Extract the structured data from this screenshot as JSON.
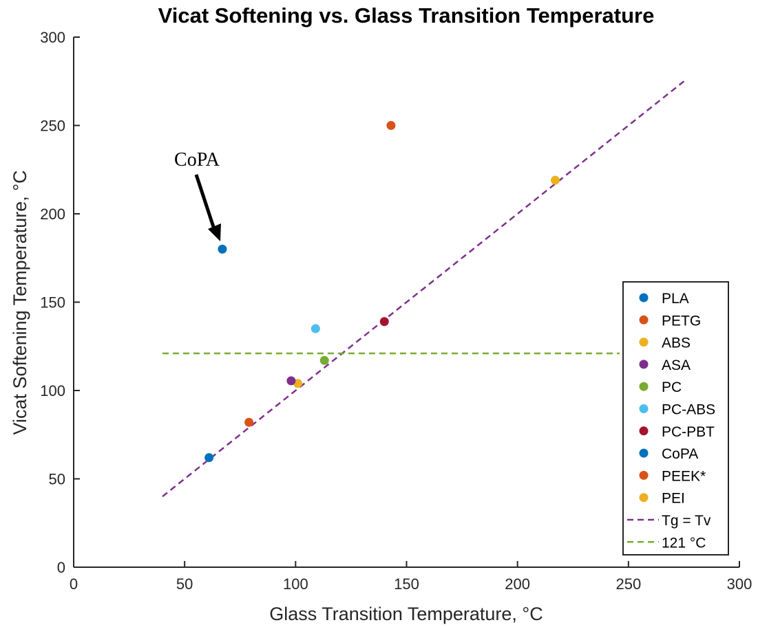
{
  "chart_data": {
    "type": "scatter",
    "title": "Vicat Softening vs. Glass Transition Temperature",
    "xlabel": "Glass Transition Temperature, °C",
    "ylabel": "Vicat Softening Temperature, °C",
    "xlim": [
      0,
      300
    ],
    "ylim": [
      0,
      300
    ],
    "xticks": [
      "0",
      "50",
      "100",
      "150",
      "200",
      "250",
      "300"
    ],
    "yticks": [
      "0",
      "50",
      "100",
      "150",
      "200",
      "250",
      "300"
    ],
    "grid": false,
    "legend_position": "lower-right",
    "series": [
      {
        "name": "PLA",
        "color": "#0072BD",
        "marker": "dot",
        "points": [
          [
            61,
            62
          ]
        ]
      },
      {
        "name": "PETG",
        "color": "#D95319",
        "marker": "dot",
        "points": [
          [
            79,
            82
          ]
        ]
      },
      {
        "name": "ABS",
        "color": "#EDB120",
        "marker": "dot",
        "points": [
          [
            101,
            104
          ]
        ]
      },
      {
        "name": "ASA",
        "color": "#7E2F8E",
        "marker": "dot",
        "points": [
          [
            98,
            105.5
          ]
        ]
      },
      {
        "name": "PC",
        "color": "#77AC30",
        "marker": "dot",
        "points": [
          [
            113,
            117
          ]
        ]
      },
      {
        "name": "PC-ABS",
        "color": "#4DBEEE",
        "marker": "dot",
        "points": [
          [
            109,
            135
          ]
        ]
      },
      {
        "name": "PC-PBT",
        "color": "#A2142F",
        "marker": "dot",
        "points": [
          [
            140,
            139
          ]
        ]
      },
      {
        "name": "CoPA",
        "color": "#0072BD",
        "marker": "dot",
        "points": [
          [
            67,
            180
          ]
        ]
      },
      {
        "name": "PEEK*",
        "color": "#D95319",
        "marker": "dot",
        "points": [
          [
            143,
            250
          ]
        ]
      },
      {
        "name": "PEI",
        "color": "#EDB120",
        "marker": "dot",
        "points": [
          [
            217,
            219
          ]
        ]
      },
      {
        "name": "Tg = Tv",
        "color": "#7E2F8E",
        "marker": "dashed-line",
        "points": [
          [
            40,
            40
          ],
          [
            275,
            275
          ]
        ]
      },
      {
        "name": "121 °C",
        "color": "#77AC30",
        "marker": "dashed-line",
        "points": [
          [
            40,
            121
          ],
          [
            246,
            121
          ]
        ]
      }
    ],
    "annotations": [
      {
        "text": "CoPA",
        "arrow_to": [
          67,
          180
        ]
      }
    ]
  }
}
